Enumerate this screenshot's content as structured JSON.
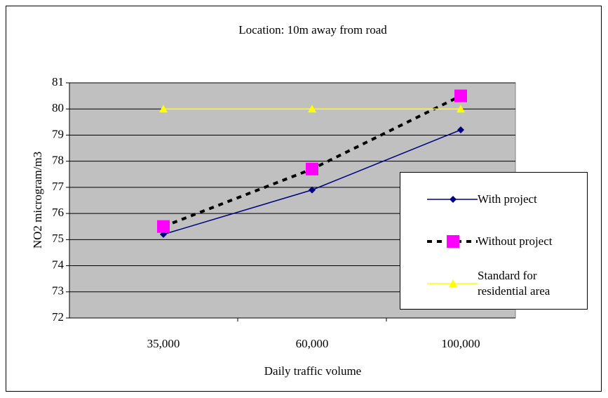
{
  "chart_data": {
    "type": "line",
    "title": "Location: 10m away from road",
    "x_label": "Daily traffic volume",
    "y_label": "NO2 microgram/m3",
    "categories": [
      "35,000",
      "60,000",
      "100,000"
    ],
    "series": [
      {
        "name": "With project",
        "color": "#000080",
        "values": [
          75.2,
          76.9,
          79.2
        ]
      },
      {
        "name": "Without project",
        "color": "#ff00ff",
        "values": [
          75.5,
          77.7,
          80.5
        ]
      },
      {
        "name": "Standard for residential area",
        "color": "#ffff00",
        "values": [
          80,
          80,
          80
        ]
      }
    ],
    "ylim": [
      72,
      81
    ],
    "yticks": [
      72,
      73,
      74,
      75,
      76,
      77,
      78,
      79,
      80,
      81
    ],
    "grid": true
  }
}
